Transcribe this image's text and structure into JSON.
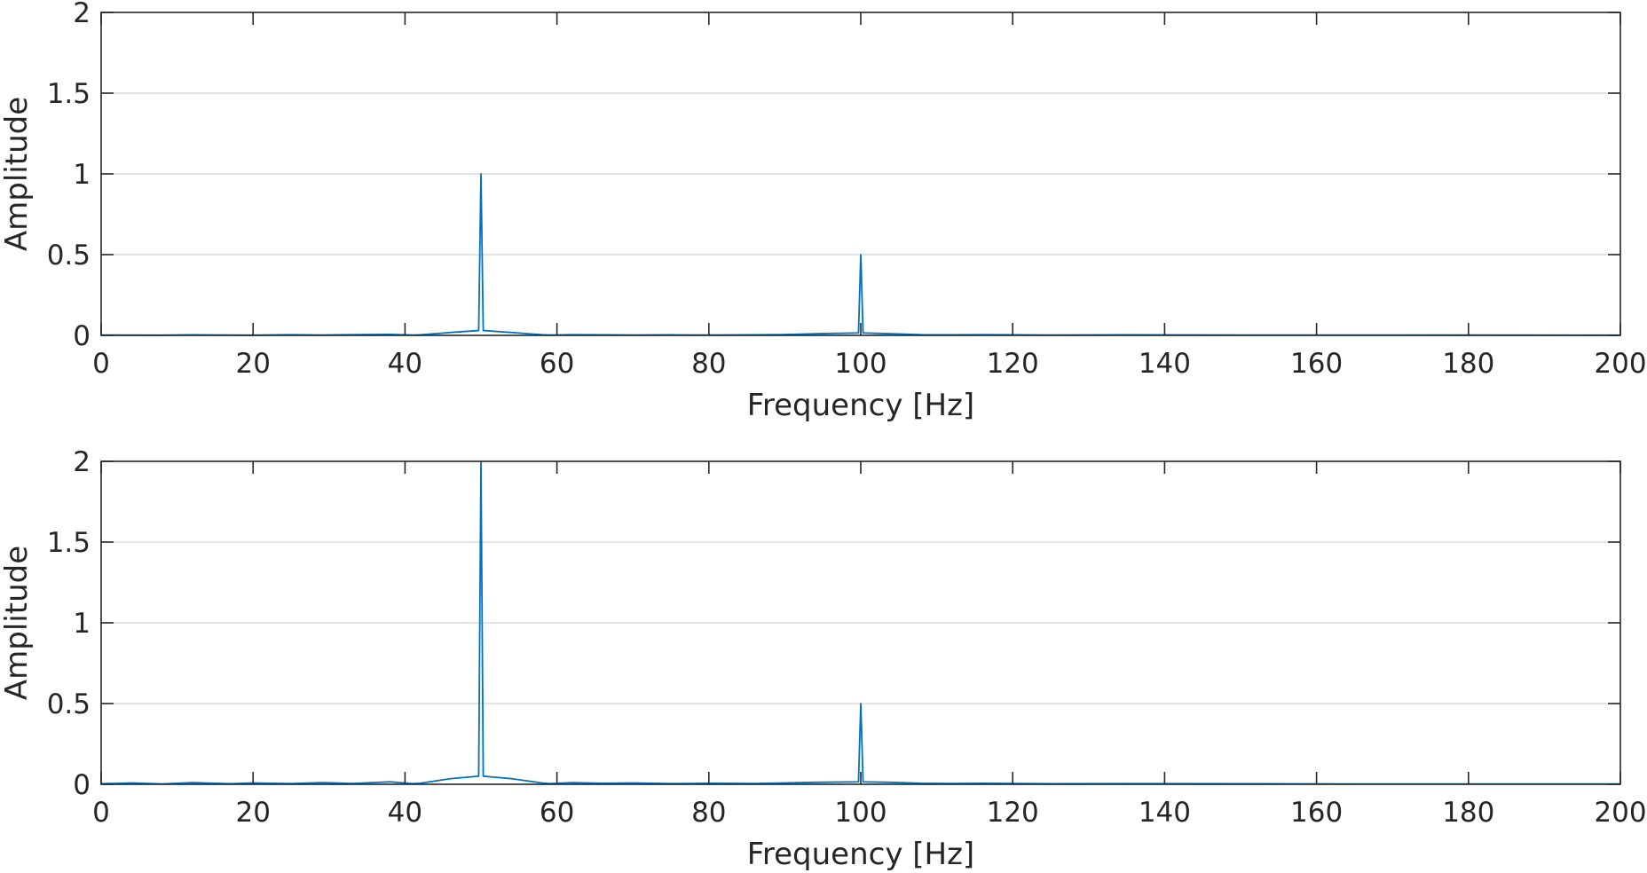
{
  "colors": {
    "series": "#0072bd",
    "axis": "#262626",
    "grid": "#dcdcdc"
  },
  "chart_data": [
    {
      "type": "line",
      "xlabel": "Frequency [Hz]",
      "ylabel": "Amplitude",
      "xlim": [
        0,
        200
      ],
      "ylim": [
        0,
        2
      ],
      "xticks": [
        0,
        20,
        40,
        60,
        80,
        100,
        120,
        140,
        160,
        180,
        200
      ],
      "yticks": [
        0,
        0.5,
        1,
        1.5,
        2
      ],
      "ytick_labels": [
        "0",
        "0.5",
        "1",
        "1.5",
        "2"
      ],
      "grid": "horizontal",
      "series": [
        {
          "x": [
            0,
            8,
            12,
            20,
            25,
            29,
            33,
            38,
            41,
            42,
            46,
            49.7,
            50,
            50.3,
            54,
            58,
            59,
            62,
            66,
            70,
            75,
            80,
            86,
            90,
            94,
            99.7,
            100,
            100.3,
            104,
            108,
            112,
            116,
            125,
            135,
            150,
            170,
            200
          ],
          "y": [
            0.002,
            0.001,
            0.003,
            0.001,
            0.004,
            0.002,
            0.004,
            0.006,
            0.002,
            0.003,
            0.018,
            0.03,
            1.0,
            0.03,
            0.018,
            0.004,
            0.002,
            0.004,
            0.003,
            0.002,
            0.003,
            0.002,
            0.003,
            0.005,
            0.01,
            0.015,
            0.5,
            0.015,
            0.01,
            0.004,
            0.003,
            0.004,
            0.002,
            0.003,
            0.002,
            0.002,
            0.001
          ]
        }
      ]
    },
    {
      "type": "line",
      "xlabel": "Frequency [Hz]",
      "ylabel": "Amplitude",
      "xlim": [
        0,
        200
      ],
      "ylim": [
        0,
        2
      ],
      "xticks": [
        0,
        20,
        40,
        60,
        80,
        100,
        120,
        140,
        160,
        180,
        200
      ],
      "yticks": [
        0,
        0.5,
        1,
        1.5,
        2
      ],
      "ytick_labels": [
        "0",
        "0.5",
        "1",
        "1.5",
        "2"
      ],
      "grid": "horizontal",
      "series": [
        {
          "x": [
            0,
            4,
            8,
            12,
            17,
            20,
            25,
            29,
            33,
            38,
            41,
            42,
            46,
            49.7,
            50,
            50.3,
            54,
            58,
            59,
            62,
            66,
            70,
            75,
            80,
            86,
            90,
            94,
            99.7,
            100,
            100.3,
            104,
            108,
            112,
            116,
            125,
            135,
            150,
            170,
            200
          ],
          "y": [
            0.003,
            0.008,
            0.002,
            0.01,
            0.003,
            0.008,
            0.004,
            0.01,
            0.005,
            0.015,
            0.004,
            0.006,
            0.035,
            0.05,
            2.0,
            0.05,
            0.035,
            0.008,
            0.004,
            0.01,
            0.006,
            0.008,
            0.004,
            0.006,
            0.005,
            0.008,
            0.012,
            0.015,
            0.5,
            0.015,
            0.012,
            0.006,
            0.005,
            0.006,
            0.003,
            0.004,
            0.003,
            0.002,
            0.002
          ]
        }
      ]
    }
  ]
}
